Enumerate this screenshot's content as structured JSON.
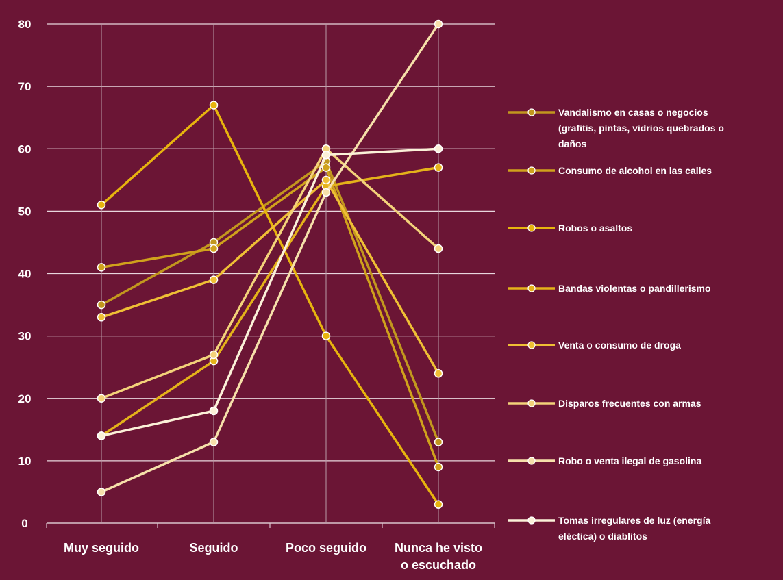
{
  "chart_data": {
    "type": "line",
    "categories": [
      "Muy seguido",
      "Seguido",
      "Poco seguido",
      "Nunca he visto o escuchado"
    ],
    "category_label_lines": [
      [
        "Muy seguido"
      ],
      [
        "Seguido"
      ],
      [
        "Poco seguido"
      ],
      [
        "Nunca he visto",
        "o escuchado"
      ]
    ],
    "ylim": [
      0,
      80
    ],
    "yticks": [
      0,
      10,
      20,
      30,
      40,
      50,
      60,
      70,
      80
    ],
    "grid": true,
    "legend_position": "right",
    "series": [
      {
        "name": "Vandalismo en casas o negocios (grafitis, pintas, vidrios quebrados o daños",
        "legend_lines": [
          "Vandalismo en casas o negocios",
          "(grafitis, pintas, vidrios quebrados o",
          "daños"
        ],
        "color": "#c2971e",
        "values": [
          35,
          45,
          58,
          13
        ]
      },
      {
        "name": "Consumo de alcohol en las calles",
        "legend_lines": [
          "Consumo de alcohol en las calles"
        ],
        "color": "#d0a21c",
        "values": [
          41,
          44,
          57,
          9
        ]
      },
      {
        "name": "Robos o asaltos",
        "legend_lines": [
          "Robos o asaltos"
        ],
        "color": "#e7b40e",
        "values": [
          51,
          67,
          30,
          3
        ]
      },
      {
        "name": "Bandas violentas o pandillerismo",
        "legend_lines": [
          "Bandas violentas o pandillerismo"
        ],
        "color": "#e4b21a",
        "values": [
          14,
          26,
          54,
          57
        ]
      },
      {
        "name": "Venta o consumo de droga",
        "legend_lines": [
          "Venta o consumo de droga"
        ],
        "color": "#efbf35",
        "values": [
          33,
          39,
          55,
          24
        ]
      },
      {
        "name": "Disparos frecuentes con armas",
        "legend_lines": [
          "Disparos frecuentes con armas"
        ],
        "color": "#f3d27a",
        "values": [
          20,
          27,
          60,
          44
        ]
      },
      {
        "name": "Robo o venta ilegal de gasolina",
        "legend_lines": [
          "Robo o venta ilegal de gasolina"
        ],
        "color": "#f6e0aa",
        "values": [
          5,
          13,
          53,
          80
        ]
      },
      {
        "name": "Tomas irregulares de luz (energía eléctica) o diablitos",
        "legend_lines": [
          "Tomas irregulares de luz (energía",
          "eléctica) o diablitos"
        ],
        "color": "#fbf1d8",
        "values": [
          14,
          18,
          59,
          60
        ]
      }
    ]
  }
}
